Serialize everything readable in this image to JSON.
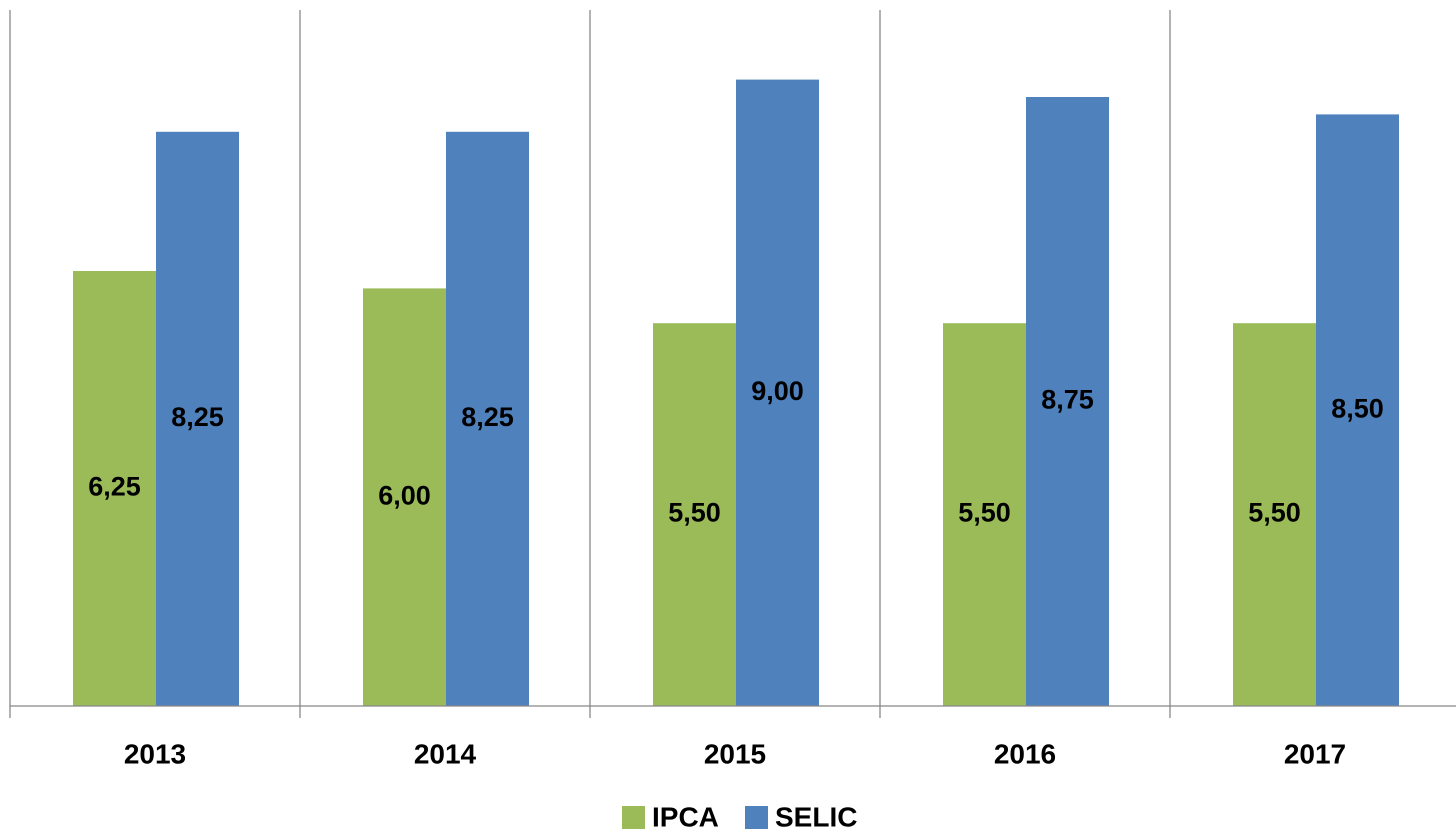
{
  "chart_data": {
    "type": "bar",
    "categories": [
      "2013",
      "2014",
      "2015",
      "2016",
      "2017"
    ],
    "series": [
      {
        "name": "IPCA",
        "color": "#9bbb59",
        "values": [
          6.25,
          6.0,
          5.5,
          5.5,
          5.5
        ],
        "value_labels": [
          "6,25",
          "6,00",
          "5,50",
          "5,50",
          "5,50"
        ]
      },
      {
        "name": "SELIC",
        "color": "#4f81bd",
        "values": [
          8.25,
          8.25,
          9.0,
          8.75,
          8.5
        ],
        "value_labels": [
          "8,25",
          "8,25",
          "9,00",
          "8,75",
          "8,50"
        ]
      }
    ],
    "ylim": [
      0,
      10
    ],
    "legend": "bottom"
  }
}
